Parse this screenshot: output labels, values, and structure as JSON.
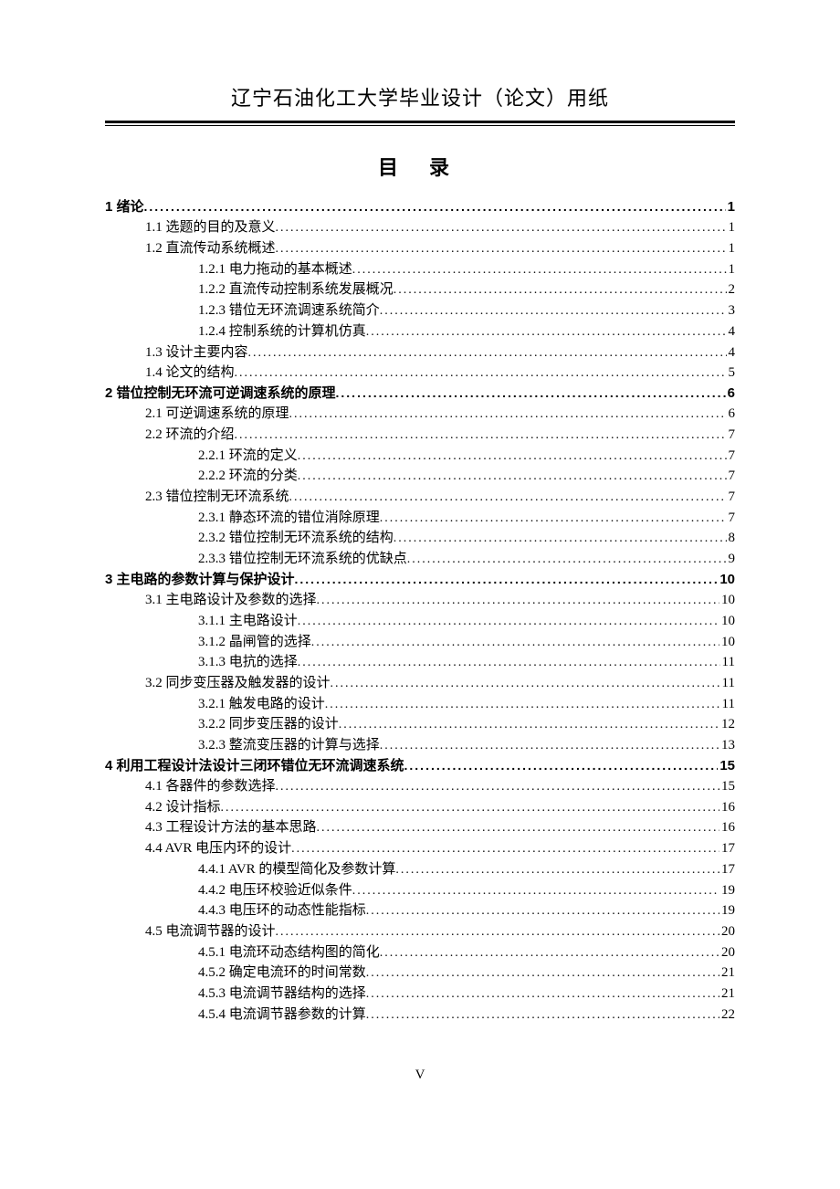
{
  "header": "辽宁石油化工大学毕业设计（论文）用纸",
  "toc_title": "目  录",
  "page_number": "V",
  "toc": [
    {
      "level": 1,
      "label": "1 绪论",
      "page": "1"
    },
    {
      "level": 2,
      "label": "1.1 选题的目的及意义",
      "page": "1"
    },
    {
      "level": 2,
      "label": "1.2 直流传动系统概述",
      "page": "1"
    },
    {
      "level": 3,
      "label": "1.2.1 电力拖动的基本概述",
      "page": "1"
    },
    {
      "level": 3,
      "label": "1.2.2 直流传动控制系统发展概况",
      "page": "2"
    },
    {
      "level": 3,
      "label": "1.2.3 错位无环流调速系统简介",
      "page": "3"
    },
    {
      "level": 3,
      "label": "1.2.4  控制系统的计算机仿真",
      "page": "4"
    },
    {
      "level": 2,
      "label": "1.3 设计主要内容",
      "page": "4"
    },
    {
      "level": 2,
      "label": "1.4 论文的结构",
      "page": "5"
    },
    {
      "level": 1,
      "label": "2 错位控制无环流可逆调速系统的原理",
      "page": "6"
    },
    {
      "level": 2,
      "label": "2.1 可逆调速系统的原理",
      "page": "6"
    },
    {
      "level": 2,
      "label": "2.2 环流的介绍",
      "page": "7"
    },
    {
      "level": 3,
      "label": "2.2.1 环流的定义",
      "page": "7"
    },
    {
      "level": 3,
      "label": "2.2.2 环流的分类",
      "page": "7"
    },
    {
      "level": 2,
      "label": "2.3 错位控制无环流系统",
      "page": "7"
    },
    {
      "level": 3,
      "label": "2.3.1 静态环流的错位消除原理",
      "page": "7"
    },
    {
      "level": 3,
      "label": "2.3.2 错位控制无环流系统的结构",
      "page": "8"
    },
    {
      "level": 3,
      "label": "2.3.3 错位控制无环流系统的优缺点",
      "page": "9"
    },
    {
      "level": 1,
      "label": "3 主电路的参数计算与保护设计",
      "page": "10"
    },
    {
      "level": 2,
      "label": "3.1 主电路设计及参数的选择",
      "page": "10"
    },
    {
      "level": 3,
      "label": "3.1.1 主电路设计",
      "page": "10"
    },
    {
      "level": 3,
      "label": "3.1.2 晶闸管的选择",
      "page": "10"
    },
    {
      "level": 3,
      "label": "3.1.3 电抗的选择",
      "page": "11"
    },
    {
      "level": 2,
      "label": "3.2 同步变压器及触发器的设计",
      "page": "11"
    },
    {
      "level": 3,
      "label": "3.2.1 触发电路的设计",
      "page": "11"
    },
    {
      "level": 3,
      "label": "3.2.2 同步变压器的设计",
      "page": "12"
    },
    {
      "level": 3,
      "label": "3.2.3 整流变压器的计算与选择",
      "page": "13"
    },
    {
      "level": 1,
      "label": "4 利用工程设计法设计三闭环错位无环流调速系统",
      "page": "15"
    },
    {
      "level": 2,
      "label": "4.1 各器件的参数选择",
      "page": "15"
    },
    {
      "level": 2,
      "label": "4.2 设计指标",
      "page": "16"
    },
    {
      "level": 2,
      "label": "4.3 工程设计方法的基本思路",
      "page": "16"
    },
    {
      "level": 2,
      "label": "4.4 AVR 电压内环的设计",
      "page": "17"
    },
    {
      "level": 3,
      "label": "4.4.1 AVR 的模型简化及参数计算",
      "page": "17"
    },
    {
      "level": 3,
      "label": "4.4.2 电压环校验近似条件",
      "page": "19"
    },
    {
      "level": 3,
      "label": "4.4.3 电压环的动态性能指标",
      "page": "19"
    },
    {
      "level": 2,
      "label": "4.5 电流调节器的设计",
      "page": "20"
    },
    {
      "level": 3,
      "label": "4.5.1 电流环动态结构图的简化",
      "page": "20"
    },
    {
      "level": 3,
      "label": "4.5.2 确定电流环的时间常数",
      "page": "21"
    },
    {
      "level": 3,
      "label": "4.5.3 电流调节器结构的选择",
      "page": "21"
    },
    {
      "level": 3,
      "label": "4.5.4 电流调节器参数的计算",
      "page": "22"
    }
  ]
}
